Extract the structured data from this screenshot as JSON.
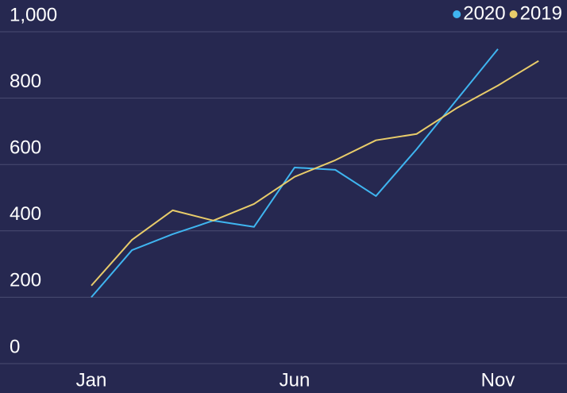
{
  "chart_data": {
    "type": "line",
    "categories": [
      "Jan",
      null,
      null,
      null,
      null,
      "Jun",
      null,
      null,
      null,
      null,
      "Nov",
      null
    ],
    "series": [
      {
        "name": "2020",
        "color": "#3fb5f0",
        "values": [
          200,
          342,
          390,
          431,
          412,
          591,
          584,
          505,
          646,
          797,
          948,
          null
        ]
      },
      {
        "name": "2019",
        "color": "#e8cc6a",
        "values": [
          235,
          373,
          462,
          431,
          481,
          563,
          613,
          673,
          692,
          771,
          838,
          912
        ]
      }
    ],
    "ylim": [
      0,
      1000
    ],
    "yticks": [
      0,
      200,
      400,
      600,
      800,
      {
        "value": 1000,
        "label": "1,000"
      }
    ],
    "grid": true,
    "legend": "top-right"
  }
}
